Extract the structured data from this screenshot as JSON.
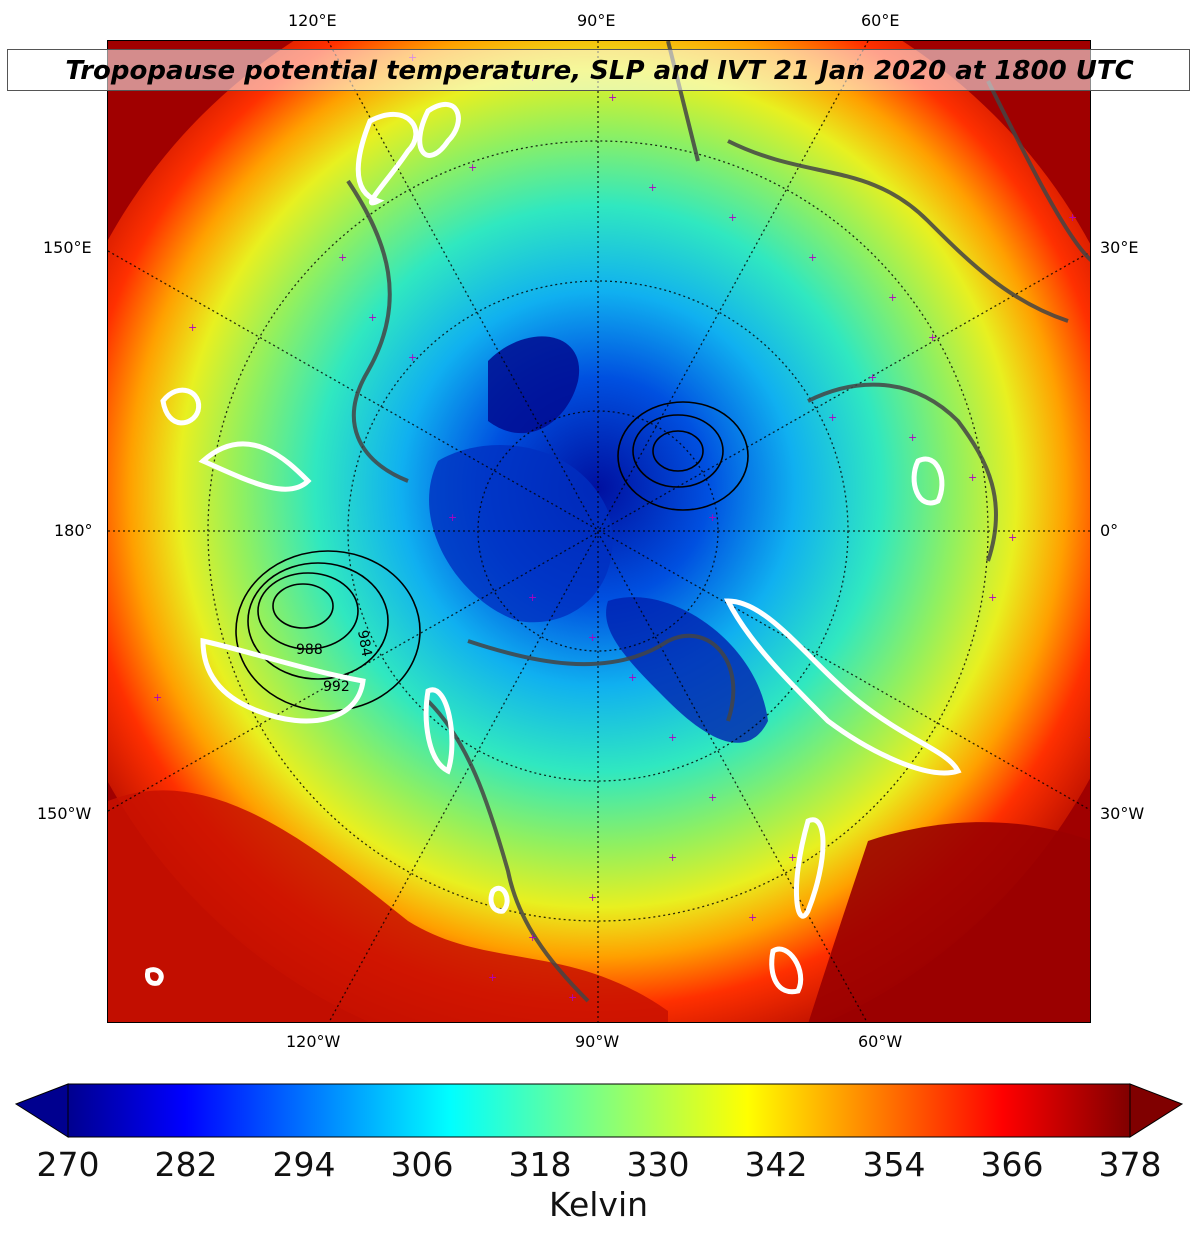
{
  "title": "Tropopause potential temperature, SLP and IVT 21 Jan 2020 at 1800 UTC",
  "longitude_labels": {
    "top": [
      "120°E",
      "90°E",
      "60°E"
    ],
    "bottom": [
      "120°W",
      "90°W",
      "60°W"
    ],
    "left": [
      "150°E",
      "180°",
      "150°W"
    ],
    "right": [
      "30°E",
      "0°",
      "30°W"
    ]
  },
  "slp_contour_labels": [
    "988",
    "992",
    "984"
  ],
  "colorbar": {
    "label": "Kelvin",
    "ticks": [
      "270",
      "282",
      "294",
      "306",
      "318",
      "330",
      "342",
      "354",
      "366",
      "378"
    ],
    "min": 270,
    "max": 378,
    "colormap": "jet",
    "extend": "both"
  },
  "colors": {
    "cold": "#00008b",
    "mid": "#40e0a0",
    "warm": "#8b0000",
    "station_markers": "#b000c0",
    "ivt_contours": "#ffffff",
    "coastlines": "#444444"
  }
}
